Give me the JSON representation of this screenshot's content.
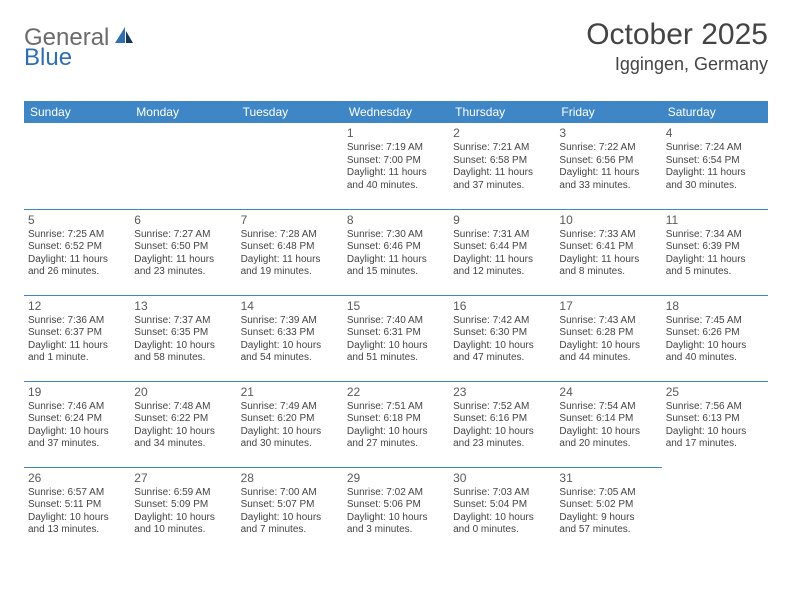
{
  "logo": {
    "general": "General",
    "blue": "Blue"
  },
  "title": "October 2025",
  "location": "Iggingen, Germany",
  "dow": [
    "Sunday",
    "Monday",
    "Tuesday",
    "Wednesday",
    "Thursday",
    "Friday",
    "Saturday"
  ],
  "colors": {
    "header_bg": "#3f86c7",
    "header_text": "#ffffff",
    "rule": "#3f86c7",
    "logo_gray": "#6b6b6b",
    "logo_blue": "#2f6fb0"
  },
  "weeks": [
    [
      null,
      null,
      null,
      {
        "n": "1",
        "sr": "Sunrise: 7:19 AM",
        "ss": "Sunset: 7:00 PM",
        "d1": "Daylight: 11 hours",
        "d2": "and 40 minutes."
      },
      {
        "n": "2",
        "sr": "Sunrise: 7:21 AM",
        "ss": "Sunset: 6:58 PM",
        "d1": "Daylight: 11 hours",
        "d2": "and 37 minutes."
      },
      {
        "n": "3",
        "sr": "Sunrise: 7:22 AM",
        "ss": "Sunset: 6:56 PM",
        "d1": "Daylight: 11 hours",
        "d2": "and 33 minutes."
      },
      {
        "n": "4",
        "sr": "Sunrise: 7:24 AM",
        "ss": "Sunset: 6:54 PM",
        "d1": "Daylight: 11 hours",
        "d2": "and 30 minutes."
      }
    ],
    [
      {
        "n": "5",
        "sr": "Sunrise: 7:25 AM",
        "ss": "Sunset: 6:52 PM",
        "d1": "Daylight: 11 hours",
        "d2": "and 26 minutes."
      },
      {
        "n": "6",
        "sr": "Sunrise: 7:27 AM",
        "ss": "Sunset: 6:50 PM",
        "d1": "Daylight: 11 hours",
        "d2": "and 23 minutes."
      },
      {
        "n": "7",
        "sr": "Sunrise: 7:28 AM",
        "ss": "Sunset: 6:48 PM",
        "d1": "Daylight: 11 hours",
        "d2": "and 19 minutes."
      },
      {
        "n": "8",
        "sr": "Sunrise: 7:30 AM",
        "ss": "Sunset: 6:46 PM",
        "d1": "Daylight: 11 hours",
        "d2": "and 15 minutes."
      },
      {
        "n": "9",
        "sr": "Sunrise: 7:31 AM",
        "ss": "Sunset: 6:44 PM",
        "d1": "Daylight: 11 hours",
        "d2": "and 12 minutes."
      },
      {
        "n": "10",
        "sr": "Sunrise: 7:33 AM",
        "ss": "Sunset: 6:41 PM",
        "d1": "Daylight: 11 hours",
        "d2": "and 8 minutes."
      },
      {
        "n": "11",
        "sr": "Sunrise: 7:34 AM",
        "ss": "Sunset: 6:39 PM",
        "d1": "Daylight: 11 hours",
        "d2": "and 5 minutes."
      }
    ],
    [
      {
        "n": "12",
        "sr": "Sunrise: 7:36 AM",
        "ss": "Sunset: 6:37 PM",
        "d1": "Daylight: 11 hours",
        "d2": "and 1 minute."
      },
      {
        "n": "13",
        "sr": "Sunrise: 7:37 AM",
        "ss": "Sunset: 6:35 PM",
        "d1": "Daylight: 10 hours",
        "d2": "and 58 minutes."
      },
      {
        "n": "14",
        "sr": "Sunrise: 7:39 AM",
        "ss": "Sunset: 6:33 PM",
        "d1": "Daylight: 10 hours",
        "d2": "and 54 minutes."
      },
      {
        "n": "15",
        "sr": "Sunrise: 7:40 AM",
        "ss": "Sunset: 6:31 PM",
        "d1": "Daylight: 10 hours",
        "d2": "and 51 minutes."
      },
      {
        "n": "16",
        "sr": "Sunrise: 7:42 AM",
        "ss": "Sunset: 6:30 PM",
        "d1": "Daylight: 10 hours",
        "d2": "and 47 minutes."
      },
      {
        "n": "17",
        "sr": "Sunrise: 7:43 AM",
        "ss": "Sunset: 6:28 PM",
        "d1": "Daylight: 10 hours",
        "d2": "and 44 minutes."
      },
      {
        "n": "18",
        "sr": "Sunrise: 7:45 AM",
        "ss": "Sunset: 6:26 PM",
        "d1": "Daylight: 10 hours",
        "d2": "and 40 minutes."
      }
    ],
    [
      {
        "n": "19",
        "sr": "Sunrise: 7:46 AM",
        "ss": "Sunset: 6:24 PM",
        "d1": "Daylight: 10 hours",
        "d2": "and 37 minutes."
      },
      {
        "n": "20",
        "sr": "Sunrise: 7:48 AM",
        "ss": "Sunset: 6:22 PM",
        "d1": "Daylight: 10 hours",
        "d2": "and 34 minutes."
      },
      {
        "n": "21",
        "sr": "Sunrise: 7:49 AM",
        "ss": "Sunset: 6:20 PM",
        "d1": "Daylight: 10 hours",
        "d2": "and 30 minutes."
      },
      {
        "n": "22",
        "sr": "Sunrise: 7:51 AM",
        "ss": "Sunset: 6:18 PM",
        "d1": "Daylight: 10 hours",
        "d2": "and 27 minutes."
      },
      {
        "n": "23",
        "sr": "Sunrise: 7:52 AM",
        "ss": "Sunset: 6:16 PM",
        "d1": "Daylight: 10 hours",
        "d2": "and 23 minutes."
      },
      {
        "n": "24",
        "sr": "Sunrise: 7:54 AM",
        "ss": "Sunset: 6:14 PM",
        "d1": "Daylight: 10 hours",
        "d2": "and 20 minutes."
      },
      {
        "n": "25",
        "sr": "Sunrise: 7:56 AM",
        "ss": "Sunset: 6:13 PM",
        "d1": "Daylight: 10 hours",
        "d2": "and 17 minutes."
      }
    ],
    [
      {
        "n": "26",
        "sr": "Sunrise: 6:57 AM",
        "ss": "Sunset: 5:11 PM",
        "d1": "Daylight: 10 hours",
        "d2": "and 13 minutes."
      },
      {
        "n": "27",
        "sr": "Sunrise: 6:59 AM",
        "ss": "Sunset: 5:09 PM",
        "d1": "Daylight: 10 hours",
        "d2": "and 10 minutes."
      },
      {
        "n": "28",
        "sr": "Sunrise: 7:00 AM",
        "ss": "Sunset: 5:07 PM",
        "d1": "Daylight: 10 hours",
        "d2": "and 7 minutes."
      },
      {
        "n": "29",
        "sr": "Sunrise: 7:02 AM",
        "ss": "Sunset: 5:06 PM",
        "d1": "Daylight: 10 hours",
        "d2": "and 3 minutes."
      },
      {
        "n": "30",
        "sr": "Sunrise: 7:03 AM",
        "ss": "Sunset: 5:04 PM",
        "d1": "Daylight: 10 hours",
        "d2": "and 0 minutes."
      },
      {
        "n": "31",
        "sr": "Sunrise: 7:05 AM",
        "ss": "Sunset: 5:02 PM",
        "d1": "Daylight: 9 hours",
        "d2": "and 57 minutes."
      },
      null
    ]
  ]
}
